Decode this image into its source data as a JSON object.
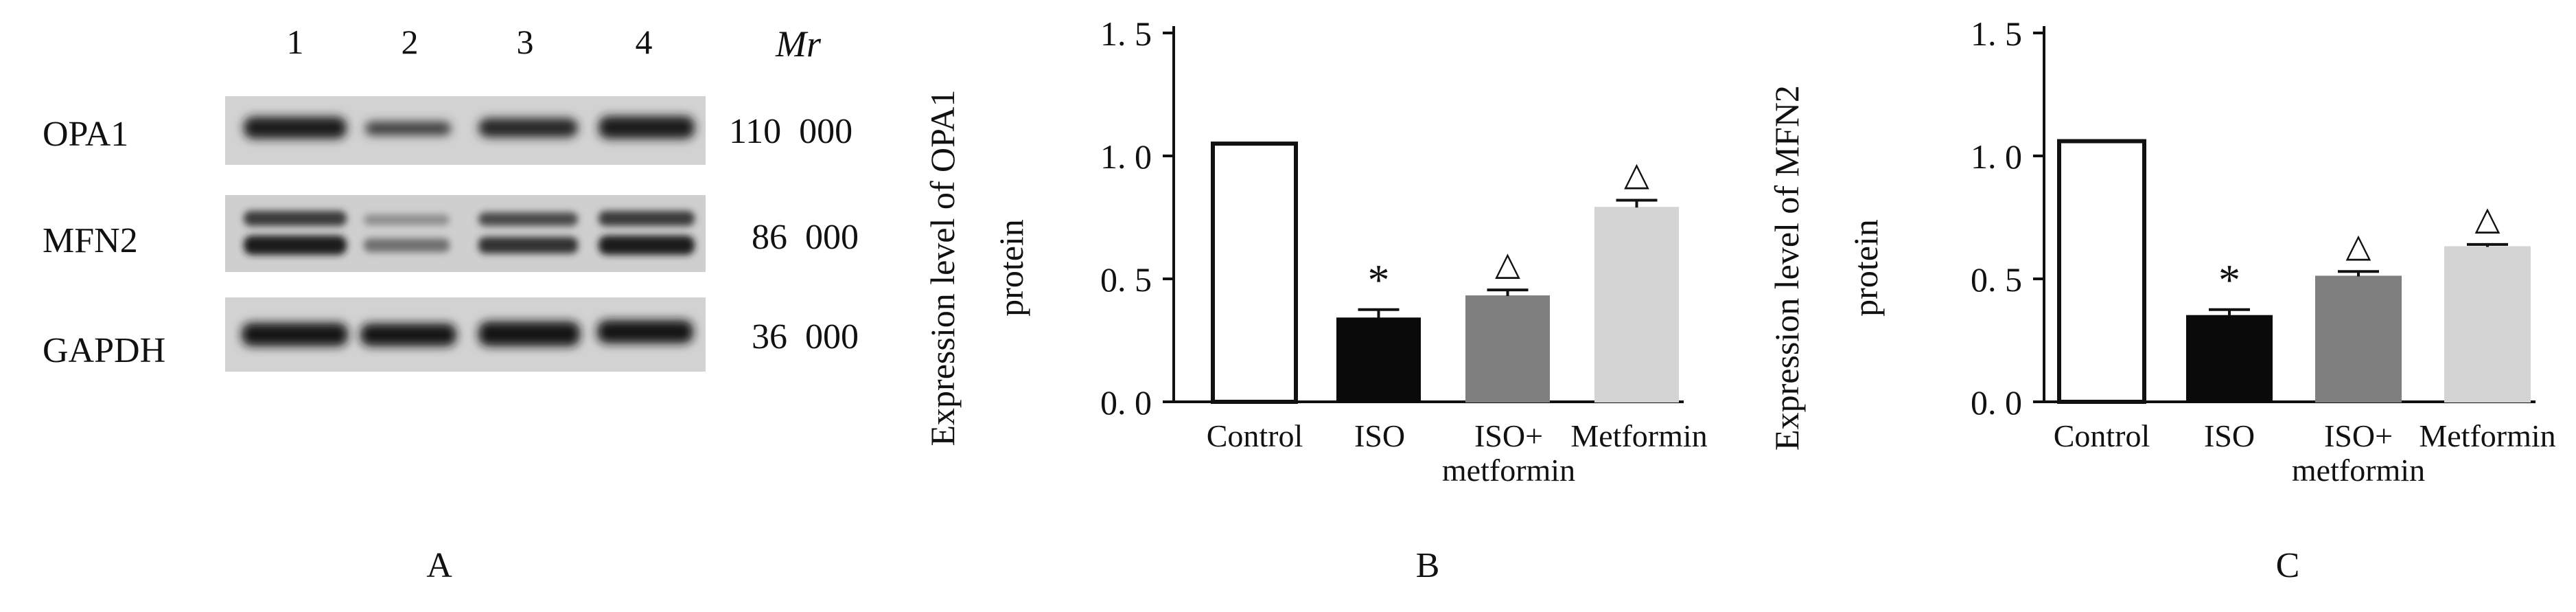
{
  "panel_a": {
    "label": "A",
    "lane_numbers": [
      "1",
      "2",
      "3",
      "4"
    ],
    "mr_label": "Mr",
    "blots": [
      {
        "name": "OPA1",
        "mr": "110  000"
      },
      {
        "name": "MFN2",
        "mr": "86  000"
      },
      {
        "name": "GAPDH",
        "mr": "36  000"
      }
    ]
  },
  "chart_data": [
    {
      "type": "bar",
      "panel": "B",
      "categories": [
        "Control",
        "ISO",
        "ISO+\nmetformin",
        "Metformin"
      ],
      "values": [
        1.05,
        0.34,
        0.43,
        0.79
      ],
      "errors": [
        0.0,
        0.035,
        0.025,
        0.03
      ],
      "annotations": [
        "",
        "*",
        "△",
        "△"
      ],
      "ylabel": "Expression level of OPA1\nprotein",
      "ylim": [
        0,
        1.5
      ],
      "yticks": [
        "0. 0",
        "0. 5",
        "1. 0",
        "1. 5"
      ],
      "ytick_values": [
        0,
        0.5,
        1.0,
        1.5
      ],
      "bar_colors": [
        "#ffffff",
        "#0a0a0a",
        "#7f7f7f",
        "#d4d4d4"
      ]
    },
    {
      "type": "bar",
      "panel": "C",
      "categories": [
        "Control",
        "ISO",
        "ISO+\nmetformin",
        "Metformin"
      ],
      "values": [
        1.06,
        0.35,
        0.51,
        0.63
      ],
      "errors": [
        0.0,
        0.025,
        0.02,
        0.01
      ],
      "annotations": [
        "",
        "*",
        "△",
        "△"
      ],
      "ylabel": "Expression level of MFN2\nprotein",
      "ylim": [
        0,
        1.5
      ],
      "yticks": [
        "0. 0",
        "0. 5",
        "1. 0",
        "1. 5"
      ],
      "ytick_values": [
        0,
        0.5,
        1.0,
        1.5
      ],
      "bar_colors": [
        "#ffffff",
        "#0a0a0a",
        "#7f7f7f",
        "#d4d4d4"
      ]
    }
  ]
}
